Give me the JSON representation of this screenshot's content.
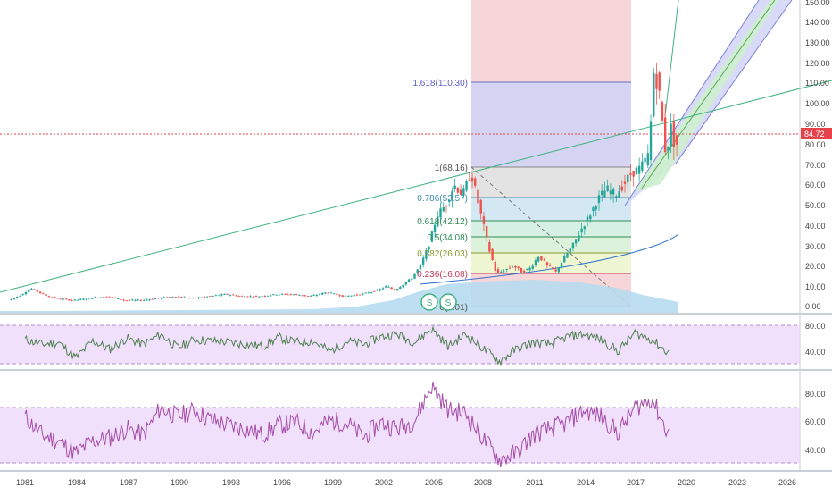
{
  "colors": {
    "up": "#26a69a",
    "down": "#ef5350",
    "grid": "#eef0f3",
    "price_line": "#e5424a",
    "volume": "#b7dcef",
    "trend_line": "#3fb27f",
    "fib_lines": "#8c8fd4",
    "rsi_line": "#4f7f4f",
    "rsi_band": "#ecd8fb",
    "stoch_line": "#a64ca6",
    "stoch_band": "#ecd8fb",
    "channel_blue": "#b3b7f0",
    "channel_green": "#c9efc9"
  },
  "price_axis_ticks": [
    "150.00",
    "140.00",
    "130.00",
    "120.00",
    "110.00",
    "100.00",
    "90.00",
    "80.00",
    "70.00",
    "60.00",
    "50.00",
    "40.00",
    "30.00",
    "20.00",
    "10.00",
    "0.00"
  ],
  "current_price_label": "84.72",
  "time_axis_ticks": [
    "1981",
    "1984",
    "1987",
    "1990",
    "1993",
    "1996",
    "1999",
    "2002",
    "2005",
    "2008",
    "2011",
    "2014",
    "2017",
    "2020",
    "2023",
    "2026"
  ],
  "fib_levels": [
    {
      "label": "1.618(110.30)",
      "color": "#5b5fc7"
    },
    {
      "label": "1(68.16)",
      "color": "#555555"
    },
    {
      "label": "0.786(53.57)",
      "color": "#3a8dad"
    },
    {
      "label": "0.618(42.12)",
      "color": "#2e8b57"
    },
    {
      "label": "0.5(34.08)",
      "color": "#2e8b57"
    },
    {
      "label": "0.382(26.03)",
      "color": "#8a9a2e"
    },
    {
      "label": "0.236(16.08)",
      "color": "#c23b5b"
    },
    {
      "label": "0(0.01)",
      "color": "#555555"
    }
  ],
  "fib_label_visible": {
    "l0": "1.618(110.30)",
    "l1": "1(68.16)",
    "l2": "0.786(53.57)",
    "l3": "0.618(42.12)",
    "l4": "0.5(34.08)",
    "l5": "0.382(26.03)",
    "l6": "0.236(16.08)",
    "l7": "0(0.01)"
  },
  "event_markers": [
    "S",
    "S"
  ],
  "rsi_axis_ticks": [
    "80.00",
    "40.00"
  ],
  "stoch_axis_ticks": [
    "80.00",
    "60.00",
    "40.00"
  ],
  "chart_data": [
    {
      "type": "line",
      "title": "",
      "price_scale": [
        0,
        150
      ],
      "x_range": [
        "1980",
        "2026"
      ],
      "series": [
        {
          "values_x": [
            1980.2,
            1981,
            1981.5,
            1982,
            1982.5,
            1983,
            1984,
            1985,
            1986,
            1987,
            1988,
            1989,
            1990,
            1991,
            1992,
            1993,
            1994,
            1995,
            1996,
            1997,
            1998,
            1999,
            2000,
            2001,
            2002,
            2002.5,
            2003,
            2004,
            2004.5,
            2005,
            2005.5,
            2006,
            2006.5,
            2007,
            2007.5,
            2008,
            2008.5,
            2009,
            2009.5,
            2010,
            2010.5,
            2011,
            2011.5,
            2012,
            2012.5,
            2013,
            2013.5,
            2014,
            2014.5,
            2015,
            2015.5,
            2016,
            2016.5,
            2017,
            2017.5,
            2018,
            2018.3,
            2018.6,
            2019,
            2019.3,
            2019.5
          ],
          "values_y": [
            3,
            6,
            9,
            7,
            5,
            4,
            3,
            4,
            5,
            3,
            3,
            4,
            5,
            4,
            5,
            6,
            5,
            5,
            6,
            6,
            5,
            7,
            5,
            6,
            8,
            10,
            8,
            14,
            20,
            30,
            45,
            50,
            60,
            55,
            66,
            48,
            30,
            16,
            18,
            20,
            17,
            19,
            25,
            20,
            17,
            24,
            30,
            38,
            45,
            53,
            58,
            55,
            60,
            66,
            68,
            75,
            118,
            105,
            75,
            88,
            80
          ]
        }
      ],
      "fib_retracement": [
        {
          "level": "1.618",
          "value": 110.3
        },
        {
          "level": "1",
          "value": 68.16
        },
        {
          "level": "0.786",
          "value": 53.57
        },
        {
          "level": "0.618",
          "value": 42.12
        },
        {
          "level": "0.5",
          "value": 34.08
        },
        {
          "level": "0.382",
          "value": 26.03
        },
        {
          "level": "0.236",
          "value": 16.08
        },
        {
          "level": "0",
          "value": 0.01
        }
      ],
      "last_price": 84.72
    },
    {
      "type": "line",
      "title": "",
      "series": [
        {
          "values_x": [
            1981,
            1982,
            1983,
            1984,
            1985,
            1986,
            1987,
            1988,
            1989,
            1990,
            1991,
            1992,
            1993,
            1994,
            1995,
            1996,
            1997,
            1998,
            1999,
            2000,
            2001,
            2002,
            2003,
            2004,
            2005,
            2006,
            2007,
            2008,
            2009,
            2010,
            2011,
            2012,
            2013,
            2014,
            2015,
            2016,
            2017,
            2018,
            2019
          ],
          "values_y": [
            62,
            55,
            58,
            35,
            60,
            48,
            64,
            55,
            70,
            50,
            62,
            60,
            58,
            55,
            52,
            65,
            58,
            60,
            45,
            60,
            55,
            66,
            70,
            58,
            78,
            52,
            70,
            50,
            30,
            48,
            58,
            55,
            66,
            70,
            62,
            45,
            72,
            62,
            42
          ]
        }
      ],
      "ylim": [
        20,
        95
      ]
    },
    {
      "type": "line",
      "title": "",
      "series": [
        {
          "values_x": [
            1981,
            1982,
            1983,
            1984,
            1985,
            1986,
            1987,
            1988,
            1989,
            1990,
            1991,
            1992,
            1993,
            1994,
            1995,
            1996,
            1997,
            1998,
            1999,
            2000,
            2001,
            2002,
            2003,
            2004,
            2005,
            2006,
            2007,
            2008,
            2009,
            2010,
            2011,
            2012,
            2013,
            2014,
            2015,
            2016,
            2017,
            2018,
            2019
          ],
          "values_y": [
            65,
            50,
            45,
            35,
            45,
            48,
            55,
            50,
            72,
            65,
            70,
            62,
            58,
            55,
            50,
            58,
            60,
            52,
            62,
            60,
            48,
            60,
            55,
            62,
            90,
            70,
            68,
            48,
            30,
            35,
            50,
            55,
            60,
            70,
            65,
            52,
            72,
            80,
            50
          ]
        }
      ],
      "ylim": [
        25,
        95
      ]
    }
  ]
}
